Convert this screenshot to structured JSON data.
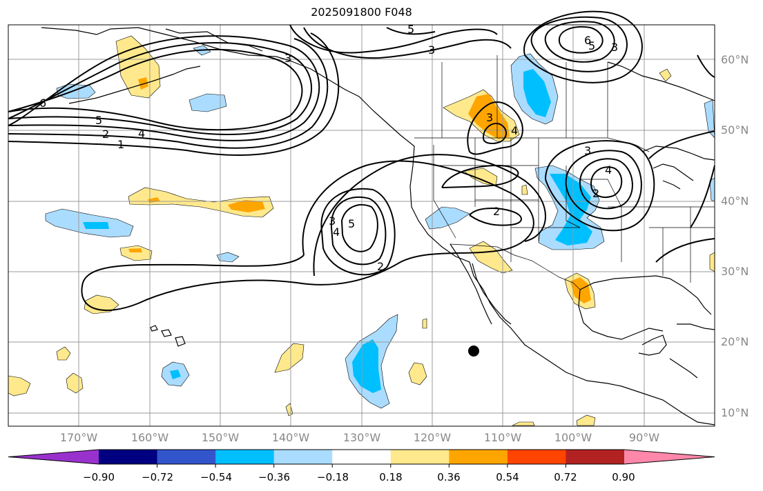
{
  "title": "2025091800 F048",
  "lat_labels": [
    "60°N",
    "50°N",
    "40°N",
    "30°N",
    "20°N",
    "10°N"
  ],
  "lon_labels": [
    "170°W",
    "160°W",
    "150°W",
    "140°W",
    "130°W",
    "120°W",
    "110°W",
    "100°W",
    "90°W"
  ],
  "colorbar": {
    "colors": [
      "#9932cc",
      "#000080",
      "#3355cc",
      "#00bfff",
      "#aadcff",
      "#ffffff",
      "#ffe98c",
      "#ffa500",
      "#ff4500",
      "#b22222",
      "#ff88aa"
    ],
    "tick_labels": [
      "−0.90",
      "−0.72",
      "−0.54",
      "−0.36",
      "−0.18",
      "0.18",
      "0.36",
      "0.54",
      "0.72",
      "0.90"
    ]
  },
  "contour_labels": [
    "6",
    "5",
    "4",
    "2",
    "1",
    "3",
    "5",
    "6",
    "3",
    "5",
    "4",
    "3",
    "4",
    "3",
    "5",
    "3",
    "4",
    "3",
    "2",
    "2",
    "2"
  ],
  "colors": {
    "grid": "#999999",
    "coast": "#000000",
    "contour": "#000000"
  }
}
